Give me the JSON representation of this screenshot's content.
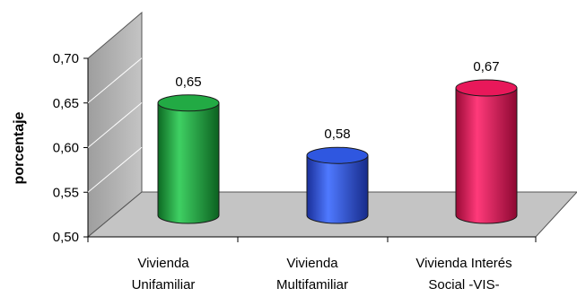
{
  "chart_data": {
    "type": "bar",
    "style": "3d-cylinder",
    "title": "",
    "xlabel": "",
    "ylabel": "porcentaje",
    "ylim": [
      0.5,
      0.7
    ],
    "yticks": [
      "0,50",
      "0,55",
      "0,60",
      "0,65",
      "0,70"
    ],
    "grid": false,
    "legend": "none",
    "categories": [
      [
        "Vivienda",
        "Unifamiliar"
      ],
      [
        "Vivienda",
        "Multifamiliar"
      ],
      [
        "Vivienda Interés",
        "Social -VIS-"
      ]
    ],
    "values": [
      0.65,
      0.58,
      0.67
    ],
    "data_labels": [
      "0,65",
      "0,58",
      "0,67"
    ],
    "colors": [
      "#22aa44",
      "#2f57e0",
      "#e8185a"
    ]
  }
}
